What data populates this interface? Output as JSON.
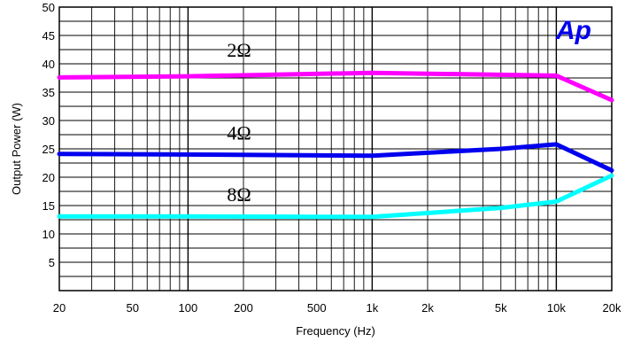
{
  "chart_data": {
    "type": "line",
    "title": "",
    "xlabel": "Frequency (Hz)",
    "ylabel": "Output Power (W)",
    "x_scale": "log",
    "xlim": [
      20,
      20000
    ],
    "ylim": [
      0,
      50
    ],
    "grid": true,
    "x_tick_values": [
      20,
      50,
      100,
      200,
      500,
      1000,
      2000,
      5000,
      10000,
      20000
    ],
    "x_tick_labels": [
      "20",
      "50",
      "100",
      "200",
      "500",
      "1k",
      "2k",
      "5k",
      "10k",
      "20k"
    ],
    "y_tick_values": [
      5,
      10,
      15,
      20,
      25,
      30,
      35,
      40,
      45,
      50
    ],
    "y_tick_labels": [
      "5",
      "10",
      "15",
      "20",
      "25",
      "30",
      "35",
      "40",
      "45",
      "50"
    ],
    "series": [
      {
        "name": "2Ω",
        "color": "#ff00ff",
        "x": [
          20,
          100,
          1000,
          10000,
          20000
        ],
        "y": [
          37.6,
          37.8,
          38.4,
          37.9,
          33.6
        ]
      },
      {
        "name": "4Ω",
        "color": "#0000ee",
        "x": [
          20,
          100,
          1000,
          5000,
          10000,
          20000
        ],
        "y": [
          24.1,
          24.0,
          23.8,
          25.0,
          25.8,
          21.2
        ]
      },
      {
        "name": "8Ω",
        "color": "#00ffff",
        "x": [
          20,
          100,
          1000,
          5000,
          10000,
          20000
        ],
        "y": [
          13.1,
          13.1,
          13.0,
          14.6,
          15.7,
          20.3
        ]
      }
    ],
    "logo_text": "Ap",
    "logo_color": "#0000ee"
  }
}
